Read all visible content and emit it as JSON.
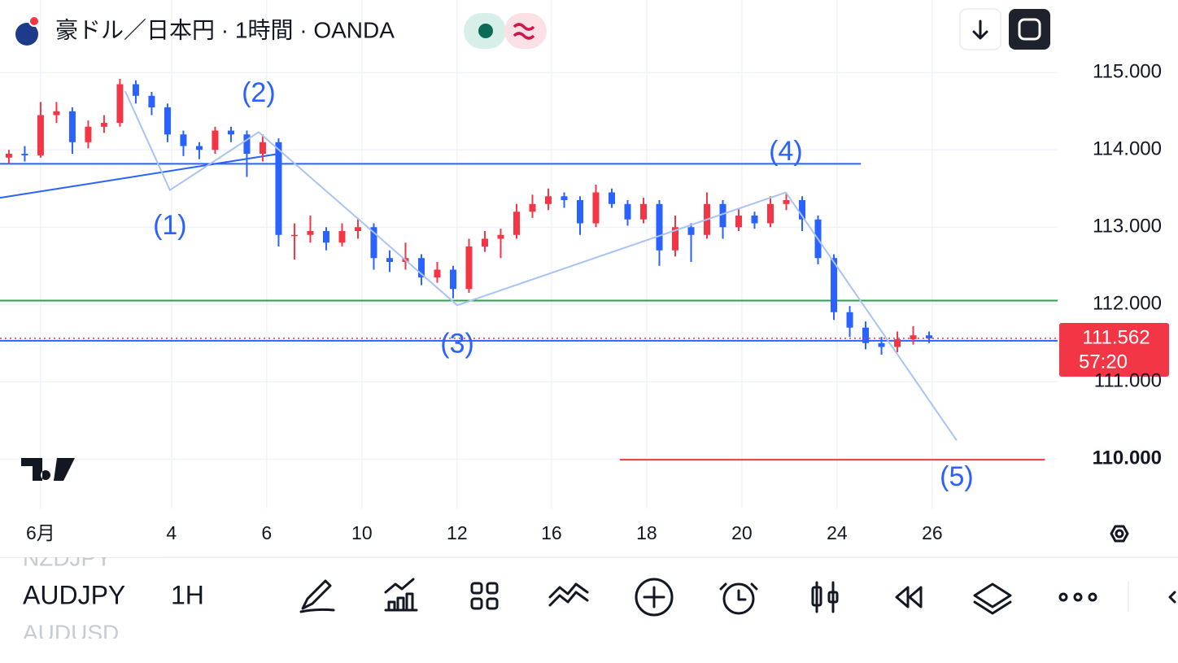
{
  "header": {
    "title": "豪ドル／日本円 · 1時間 · OANDA"
  },
  "chart_data": {
    "type": "candlestick",
    "xlim": [
      -0.56,
      66.1
    ],
    "ylim": [
      109.36,
      115.94
    ],
    "xticks": [
      {
        "value": 2,
        "label": "6月"
      },
      {
        "value": 10.25,
        "label": "4"
      },
      {
        "value": 16.25,
        "label": "6"
      },
      {
        "value": 22.25,
        "label": "10"
      },
      {
        "value": 28.25,
        "label": "12"
      },
      {
        "value": 34.2,
        "label": "16"
      },
      {
        "value": 40.2,
        "label": "18"
      },
      {
        "value": 46.2,
        "label": "20"
      },
      {
        "value": 52.2,
        "label": "24"
      },
      {
        "value": 58.2,
        "label": "26"
      }
    ],
    "yticks": [
      {
        "value": 115,
        "label": "115.000"
      },
      {
        "value": 114,
        "label": "114.000"
      },
      {
        "value": 113,
        "label": "113.000"
      },
      {
        "value": 112,
        "label": "112.000"
      },
      {
        "value": 111,
        "label": "111.000"
      },
      {
        "value": 110,
        "label": "110.000"
      }
    ],
    "grid": true,
    "up_color": "#f23645",
    "down_color": "#2962ff",
    "candles": [
      [
        113.9,
        114.0,
        113.82,
        113.95
      ],
      [
        113.95,
        114.05,
        113.85,
        113.93
      ],
      [
        113.93,
        114.62,
        113.9,
        114.45
      ],
      [
        114.45,
        114.62,
        114.35,
        114.5
      ],
      [
        114.5,
        114.55,
        113.95,
        114.1
      ],
      [
        114.1,
        114.38,
        114.02,
        114.3
      ],
      [
        114.3,
        114.45,
        114.22,
        114.35
      ],
      [
        114.35,
        114.92,
        114.3,
        114.85
      ],
      [
        114.85,
        114.9,
        114.6,
        114.7
      ],
      [
        114.7,
        114.75,
        114.45,
        114.55
      ],
      [
        114.55,
        114.6,
        114.1,
        114.2
      ],
      [
        114.2,
        114.25,
        113.92,
        114.05
      ],
      [
        114.05,
        114.1,
        113.88,
        114.0
      ],
      [
        114.0,
        114.3,
        113.95,
        114.25
      ],
      [
        114.25,
        114.3,
        114.1,
        114.2
      ],
      [
        114.2,
        114.25,
        113.65,
        113.95
      ],
      [
        113.95,
        114.2,
        113.85,
        114.1
      ],
      [
        114.1,
        114.15,
        112.75,
        112.9
      ],
      [
        112.9,
        113.05,
        112.58,
        112.9
      ],
      [
        112.9,
        113.15,
        112.8,
        112.95
      ],
      [
        112.95,
        113.0,
        112.7,
        112.8
      ],
      [
        112.8,
        113.05,
        112.75,
        112.95
      ],
      [
        112.95,
        113.12,
        112.85,
        113.0
      ],
      [
        113.0,
        113.05,
        112.45,
        112.6
      ],
      [
        112.6,
        112.7,
        112.42,
        112.55
      ],
      [
        112.55,
        112.8,
        112.45,
        112.6
      ],
      [
        112.6,
        112.65,
        112.25,
        112.35
      ],
      [
        112.35,
        112.55,
        112.28,
        112.45
      ],
      [
        112.45,
        112.5,
        112.08,
        112.2
      ],
      [
        112.2,
        112.85,
        112.15,
        112.75
      ],
      [
        112.75,
        112.95,
        112.68,
        112.85
      ],
      [
        112.85,
        112.98,
        112.6,
        112.9
      ],
      [
        112.9,
        113.3,
        112.85,
        113.2
      ],
      [
        113.2,
        113.42,
        113.12,
        113.3
      ],
      [
        113.3,
        113.5,
        113.22,
        113.4
      ],
      [
        113.4,
        113.45,
        113.25,
        113.35
      ],
      [
        113.35,
        113.4,
        112.9,
        113.05
      ],
      [
        113.05,
        113.55,
        113.0,
        113.45
      ],
      [
        113.45,
        113.5,
        113.25,
        113.3
      ],
      [
        113.3,
        113.35,
        113.02,
        113.1
      ],
      [
        113.1,
        113.38,
        113.05,
        113.3
      ],
      [
        113.3,
        113.35,
        112.5,
        112.7
      ],
      [
        112.7,
        113.15,
        112.62,
        113.0
      ],
      [
        113.0,
        113.05,
        112.55,
        112.9
      ],
      [
        112.9,
        113.45,
        112.85,
        113.3
      ],
      [
        113.3,
        113.35,
        112.85,
        113.0
      ],
      [
        113.0,
        113.25,
        112.95,
        113.15
      ],
      [
        113.15,
        113.2,
        112.98,
        113.05
      ],
      [
        113.05,
        113.4,
        113.0,
        113.3
      ],
      [
        113.3,
        113.45,
        113.22,
        113.35
      ],
      [
        113.35,
        113.4,
        112.95,
        113.1
      ],
      [
        113.1,
        113.15,
        112.52,
        112.6
      ],
      [
        112.6,
        112.65,
        111.8,
        111.9
      ],
      [
        111.9,
        111.98,
        111.58,
        111.7
      ],
      [
        111.7,
        111.78,
        111.42,
        111.5
      ],
      [
        111.5,
        111.58,
        111.35,
        111.45
      ],
      [
        111.45,
        111.65,
        111.38,
        111.55
      ],
      [
        111.55,
        111.72,
        111.48,
        111.6
      ],
      [
        111.6,
        111.65,
        111.5,
        111.56
      ]
    ],
    "levels": [
      {
        "value": 113.82,
        "color": "#2962ff",
        "x": [
          -0.56,
          53.7
        ]
      },
      {
        "value": 111.53,
        "color": "#2962ff",
        "x": [
          -0.56,
          66.1
        ]
      },
      {
        "value": 112.05,
        "color": "#22a447",
        "x": [
          -0.56,
          66.1
        ]
      },
      {
        "value": 109.99,
        "color": "#f23645",
        "x": [
          38.5,
          65.3
        ]
      }
    ],
    "trendline": {
      "x": [
        -0.56,
        17.03
      ],
      "values": [
        113.38,
        113.95
      ],
      "color": "#2962ff"
    },
    "wave": {
      "x": [
        7.33,
        10.15,
        15.74,
        28.26,
        48.97,
        59.74
      ],
      "values": [
        114.76,
        113.48,
        114.23,
        111.99,
        113.45,
        110.24
      ],
      "color": "#a9c3f3"
    },
    "wave_labels": [
      {
        "text": "(1)",
        "x": 10.15,
        "y": 113.0
      },
      {
        "text": "(2)",
        "x": 15.74,
        "y": 114.72
      },
      {
        "text": "(3)",
        "x": 28.26,
        "y": 111.47
      },
      {
        "text": "(4)",
        "x": 48.97,
        "y": 113.96
      },
      {
        "text": "(5)",
        "x": 59.74,
        "y": 109.75
      }
    ],
    "last_price": 111.562,
    "countdown": "57:20"
  },
  "toolbar": {
    "symbol": "AUDJPY",
    "interval": "1H",
    "prev_symbol": "NZDJPY",
    "next_symbol": "AUDUSD"
  }
}
